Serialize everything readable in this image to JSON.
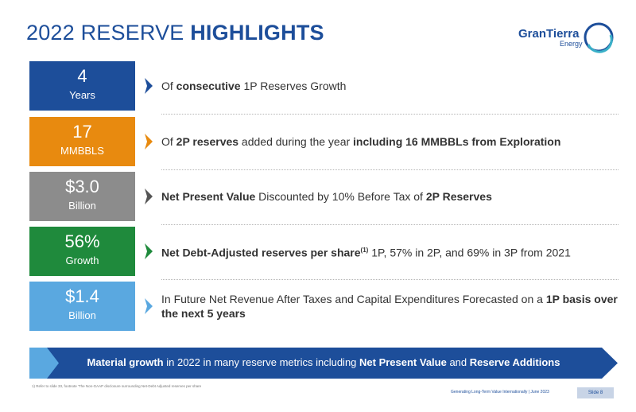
{
  "title": {
    "light": "2022 RESERVE ",
    "bold": "HIGHLIGHTS"
  },
  "logo": {
    "brand": "GranTierra",
    "sub": "Energy"
  },
  "colors": {
    "navy": "#1d4e9a",
    "orange": "#e88a0f",
    "gray": "#8c8c8c",
    "green": "#1f8a3c",
    "lightblue": "#5aa8e0"
  },
  "rows": [
    {
      "big": "4",
      "small": "Years",
      "color": "#1d4e9a",
      "d1": "Of ",
      "d2": "consecutive",
      "d3": " 1P Reserves Growth"
    },
    {
      "big": "17",
      "small": "MMBBLS",
      "color": "#e88a0f",
      "d1": "Of ",
      "d2": "2P reserves",
      "d3": " added during the year ",
      "d4": "including 16 MMBBLs from Exploration"
    },
    {
      "big": "$3.0",
      "small": "Billion",
      "color": "#8c8c8c",
      "d1": "Net Present Value",
      "d2": " Discounted by 10% Before Tax of ",
      "d3": "2P Reserves"
    },
    {
      "big": "56%",
      "small": "Growth",
      "color": "#1f8a3c",
      "d1": "Net Debt-Adjusted reserves per share",
      "sup": "(1)",
      "d2": " 1P, 57% in 2P, and 69% in 3P from 2021"
    },
    {
      "big": "$1.4",
      "small": "Billion",
      "color": "#5aa8e0",
      "d1": "In Future Net Revenue After Taxes and Capital Expenditures Forecasted on a ",
      "d2": "1P basis over the next 5 years"
    }
  ],
  "banner": {
    "b1": "Material growth",
    "t1": " in 2022 in many reserve metrics including ",
    "b2": "Net Present Value",
    "t2": " and ",
    "b3": "Reserve Additions"
  },
  "footnote": "1)   Refer to slide 33, footnote 'The Non-GAAP disclosure surrounding Net-Debt Adjusted reserves per share",
  "footer": "Generating Long-Term Value Internationally  |  June 2023",
  "slide": "Slide 8"
}
